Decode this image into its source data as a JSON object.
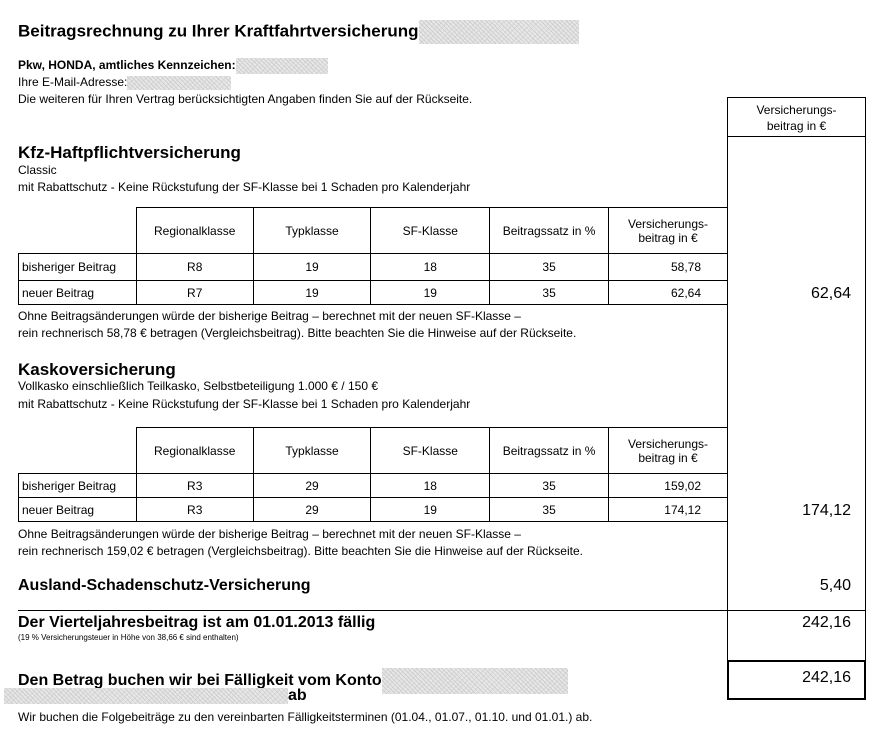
{
  "title": "Beitragsrechnung zu Ihrer Kraftfahrtversicherung",
  "vehicle_label": "Pkw, HONDA, amtliches Kennzeichen:",
  "email_label": "Ihre E-Mail-Adresse:",
  "info_text": "Die weiteren für Ihren Vertrag berücksichtigten Angaben finden Sie auf der Rückseite.",
  "column_header": [
    "Versicherungs-",
    "beitrag in €"
  ],
  "table_headers": [
    "Regionalklasse",
    "Typklasse",
    "SF-Klasse",
    "Beitragssatz in %",
    "Versicherungs- beitrag in €"
  ],
  "haftpflicht": {
    "heading": "Kfz-Haftpflichtversicherung",
    "tariff": "Classic",
    "option": "mit Rabattschutz - Keine Rückstufung der SF-Klasse bei 1 Schaden pro Kalenderjahr",
    "rows": [
      {
        "label": "bisheriger Beitrag",
        "regionalklasse": "R8",
        "typklasse": "19",
        "sf_klasse": "18",
        "beitragssatz": "35",
        "beitrag": "58,78"
      },
      {
        "label": "neuer Beitrag",
        "regionalklasse": "R7",
        "typklasse": "19",
        "sf_klasse": "19",
        "beitragssatz": "35",
        "beitrag": "62,64"
      }
    ],
    "note_1": "Ohne Beitragsänderungen würde der bisherige Beitrag – berechnet mit der neuen SF-Klasse –",
    "note_2": "rein rechnerisch 58,78 € betragen (Vergleichsbeitrag). Bitte beachten Sie die Hinweise auf der Rückseite.",
    "total": "62,64"
  },
  "kasko": {
    "heading": "Kaskoversicherung",
    "tariff": "Vollkasko einschließlich Teilkasko, Selbstbeteiligung 1.000 € / 150 €",
    "option": "mit Rabattschutz - Keine Rückstufung der SF-Klasse bei 1 Schaden pro Kalenderjahr",
    "rows": [
      {
        "label": "bisheriger Beitrag",
        "regionalklasse": "R3",
        "typklasse": "29",
        "sf_klasse": "18",
        "beitragssatz": "35",
        "beitrag": "159,02"
      },
      {
        "label": "neuer Beitrag",
        "regionalklasse": "R3",
        "typklasse": "29",
        "sf_klasse": "19",
        "beitragssatz": "35",
        "beitrag": "174,12"
      }
    ],
    "note_1": "Ohne Beitragsänderungen würde der bisherige Beitrag – berechnet mit der neuen SF-Klasse –",
    "note_2": "rein rechnerisch 159,02 € betragen (Vergleichsbeitrag). Bitte beachten Sie die Hinweise auf der Rückseite.",
    "total": "174,12"
  },
  "ausland": {
    "heading": "Ausland-Schadenschutz-Versicherung",
    "total": "5,40"
  },
  "quarterly": {
    "heading": "Der Vierteljahresbeitrag ist am 01.01.2013 fällig",
    "tax_note": "(19 % Versicherungsteuer in Höhe von 38,66 € sind enthalten)",
    "total": "242,16"
  },
  "debit": {
    "heading": "Den Betrag buchen wir bei Fälligkeit vom Konto",
    "suffix": "ab",
    "total": "242,16",
    "followup": "Wir buchen die Folgebeiträge zu den vereinbarten Fälligkeitsterminen (01.04., 01.07., 01.10. und 01.01.) ab."
  }
}
